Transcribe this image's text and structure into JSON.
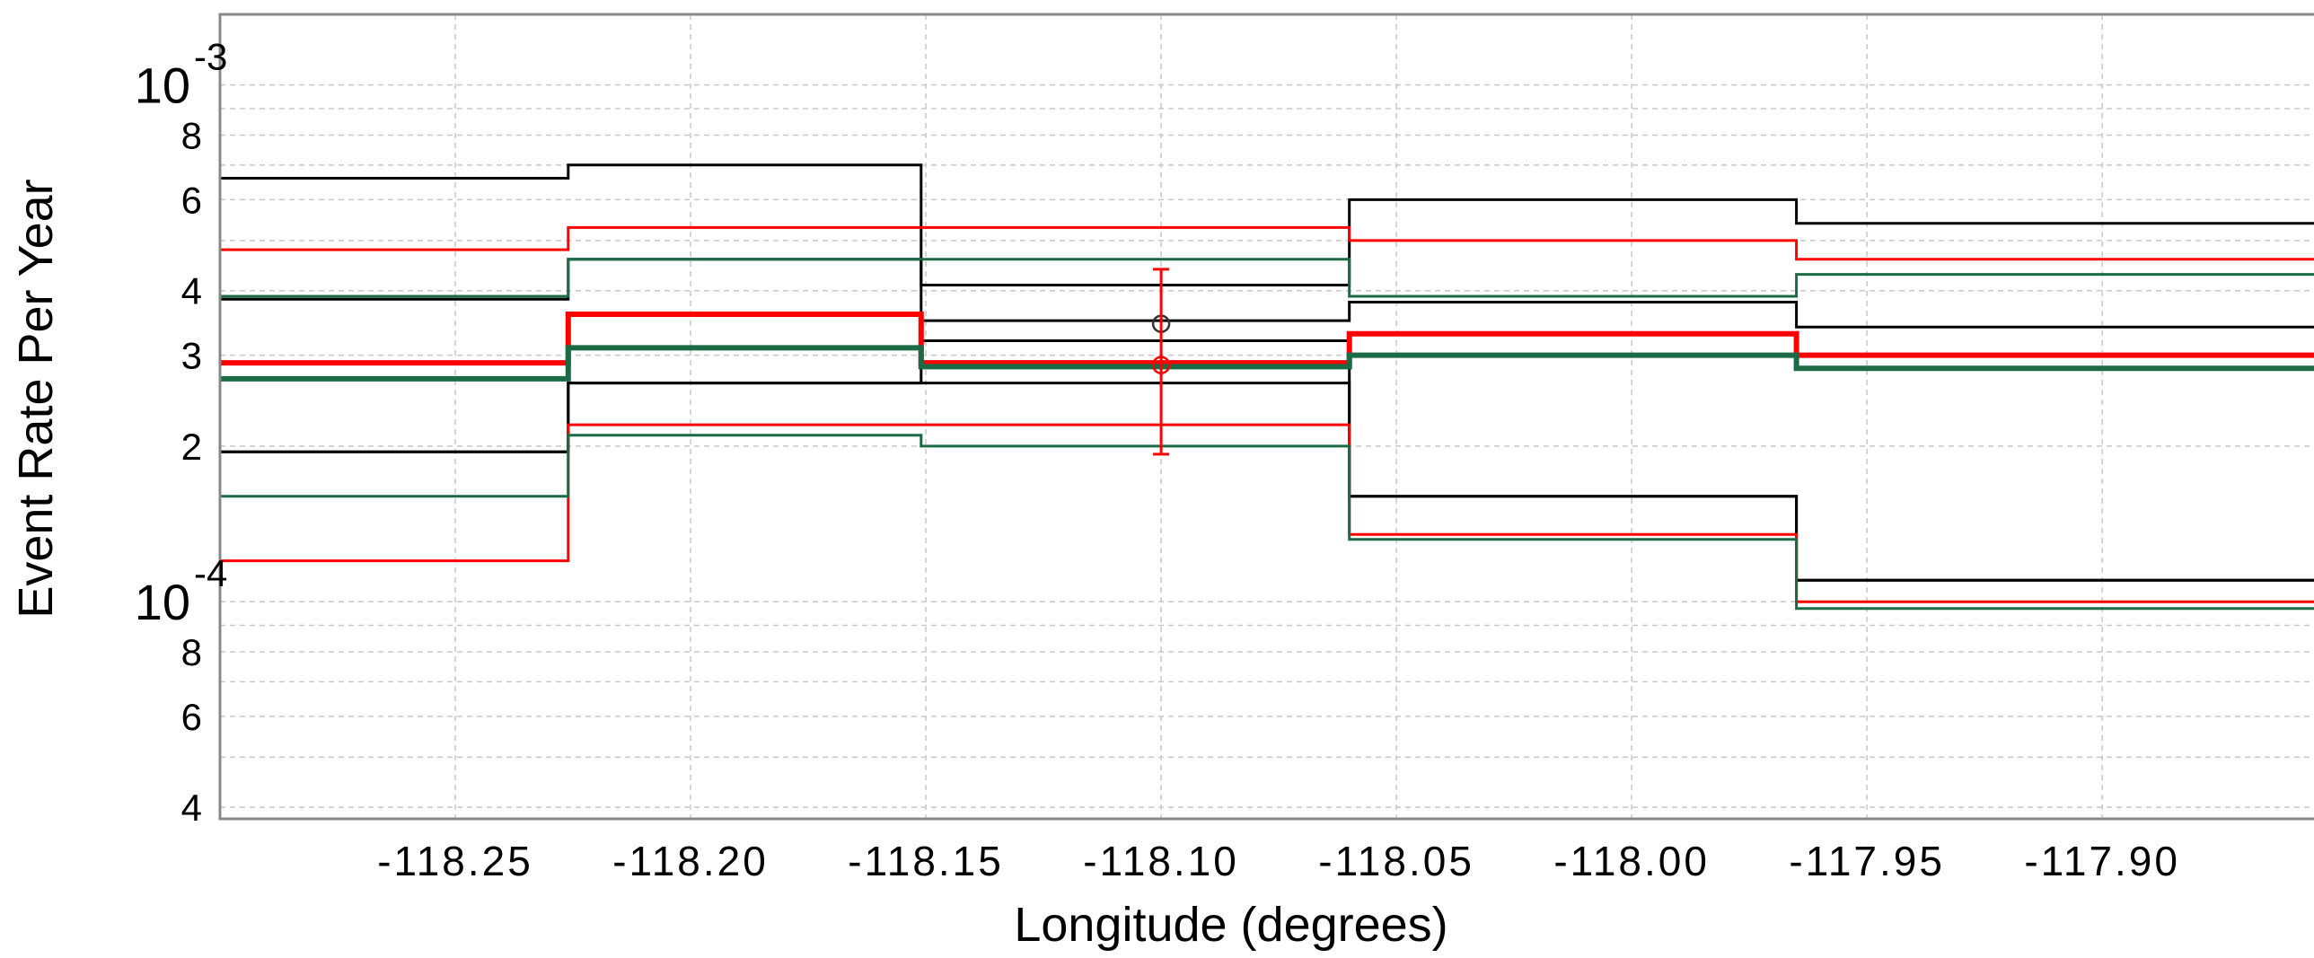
{
  "chart_data": {
    "type": "line",
    "xlabel": "Longitude (degrees)",
    "ylabel": "Event Rate Per Year",
    "xlim": [
      -118.3,
      -117.855
    ],
    "ylim": [
      3.8e-05,
      0.00137
    ],
    "y_scale": "log",
    "grid": true,
    "x_ticks": [
      -118.25,
      -118.2,
      -118.15,
      -118.1,
      -118.05,
      -118.0,
      -117.95,
      -117.9
    ],
    "x_tick_labels": [
      "-118.25",
      "-118.20",
      "-118.15",
      "-118.10",
      "-118.05",
      "-118.00",
      "-117.95",
      "-117.90"
    ],
    "y_decades": [
      {
        "value": 0.001,
        "base": "10",
        "exponent": "-3"
      },
      {
        "value": 0.0001,
        "base": "10",
        "exponent": "-4"
      }
    ],
    "y_minor_ticks": [
      {
        "value": 0.0008,
        "label": "8"
      },
      {
        "value": 0.0006,
        "label": "6"
      },
      {
        "value": 0.0004,
        "label": "4"
      },
      {
        "value": 0.0003,
        "label": "3"
      },
      {
        "value": 0.0002,
        "label": "2"
      },
      {
        "value": 8e-05,
        "label": "8"
      },
      {
        "value": 6e-05,
        "label": "6"
      },
      {
        "value": 4e-05,
        "label": "4"
      }
    ],
    "bin_edges": [
      -118.3,
      -118.226,
      -118.151,
      -118.06,
      -117.965,
      -117.855
    ],
    "series": [
      {
        "color": "#000000",
        "width": 3,
        "values": [
          0.00066,
          0.0007,
          0.00041,
          0.0006,
          0.00054
        ]
      },
      {
        "color": "#000000",
        "width": 3,
        "values": [
          0.000385,
          0.00046,
          0.00035,
          0.00038,
          0.00034
        ]
      },
      {
        "color": "#000000",
        "width": 3,
        "values": [
          0.000195,
          0.000265,
          0.00032,
          0.00016,
          0.00011
        ]
      },
      {
        "color": "#000000",
        "width": 3,
        "values": [
          0.000195,
          0.000265,
          0.000265,
          0.00016,
          0.00011
        ]
      },
      {
        "color": "#ff0000",
        "width": 3,
        "values": [
          0.00048,
          0.00053,
          0.00053,
          0.0005,
          0.00046
        ]
      },
      {
        "color": "#ff0000",
        "width": 3,
        "values": [
          0.00012,
          0.00022,
          0.00022,
          0.000135,
          0.0001
        ]
      },
      {
        "color": "#ff0000",
        "width": 6,
        "values": [
          0.00029,
          0.00036,
          0.00029,
          0.00033,
          0.0003
        ]
      },
      {
        "color": "#1a6b45",
        "width": 3,
        "values": [
          0.00039,
          0.00046,
          0.00046,
          0.00039,
          0.00043
        ]
      },
      {
        "color": "#1a6b45",
        "width": 3,
        "values": [
          0.00016,
          0.00021,
          0.0002,
          0.000132,
          9.7e-05
        ]
      },
      {
        "color": "#1a6b45",
        "width": 6,
        "values": [
          0.00027,
          0.00031,
          0.000285,
          0.0003,
          0.000283
        ]
      }
    ],
    "observations": [
      {
        "x": -118.1,
        "y": 0.000345,
        "color": "#333333"
      },
      {
        "x": -118.1,
        "y": 0.000287,
        "color": "#ff0000",
        "err_low": 0.000193,
        "err_high": 0.00044
      }
    ],
    "colors": {
      "frame": "#888888",
      "grid": "#c8c8c8"
    }
  }
}
